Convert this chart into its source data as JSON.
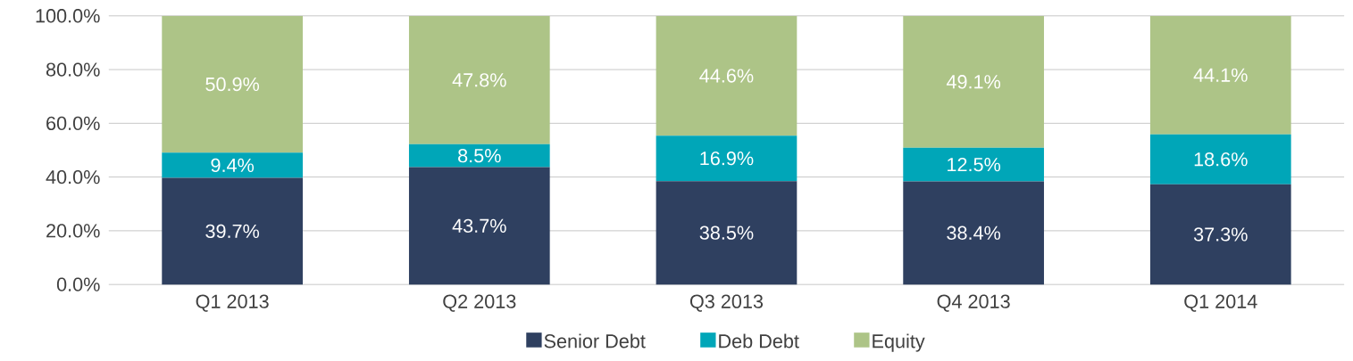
{
  "chart_data": {
    "type": "bar",
    "stacked": true,
    "categories": [
      "Q1 2013",
      "Q2 2013",
      "Q3 2013",
      "Q4 2013",
      "Q1 2014"
    ],
    "series": [
      {
        "name": "Senior Debt",
        "color": "#2f4060",
        "values": [
          39.7,
          43.7,
          38.5,
          38.4,
          37.3
        ],
        "value_labels": [
          "39.7%",
          "43.7%",
          "38.5%",
          "38.4%",
          "37.3%"
        ]
      },
      {
        "name": "Deb Debt",
        "color": "#00a6b8",
        "values": [
          9.4,
          8.5,
          16.9,
          12.5,
          18.6
        ],
        "value_labels": [
          "9.4%",
          "8.5%",
          "16.9%",
          "12.5%",
          "18.6%"
        ]
      },
      {
        "name": "Equity",
        "color": "#adc487",
        "values": [
          50.9,
          47.8,
          44.6,
          49.1,
          44.1
        ],
        "value_labels": [
          "50.9%",
          "47.8%",
          "44.6%",
          "49.1%",
          "44.1%"
        ]
      }
    ],
    "ylim": [
      0,
      100
    ],
    "yticks": [
      {
        "value": 0,
        "label": "0.0%"
      },
      {
        "value": 20,
        "label": "20.0%"
      },
      {
        "value": 40,
        "label": "40.0%"
      },
      {
        "value": 60,
        "label": "60.0%"
      },
      {
        "value": 80,
        "label": "80.0%"
      },
      {
        "value": 100,
        "label": "100.0%"
      }
    ],
    "grid": "y",
    "legend": "bottom"
  }
}
